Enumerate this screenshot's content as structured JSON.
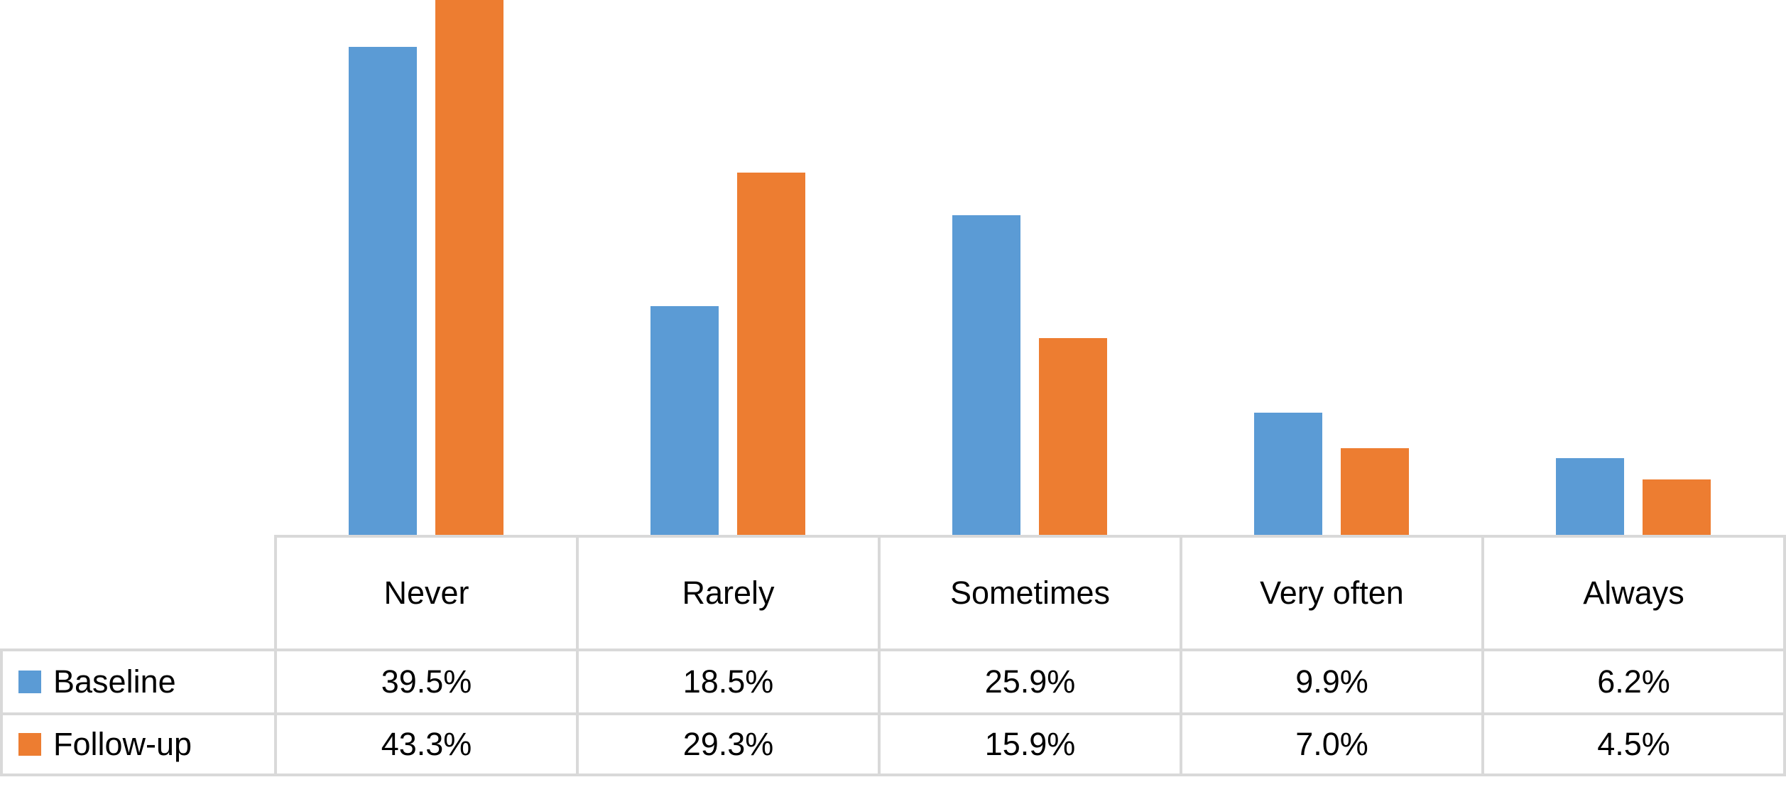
{
  "chart_data": {
    "type": "bar",
    "categories": [
      "Never",
      "Rarely",
      "Sometimes",
      "Very often",
      "Always"
    ],
    "series": [
      {
        "name": "Baseline",
        "color": "#5B9BD5",
        "values": [
          39.5,
          18.5,
          25.9,
          9.9,
          6.2
        ]
      },
      {
        "name": "Follow-up",
        "color": "#ED7D31",
        "values": [
          43.3,
          29.3,
          15.9,
          7.0,
          4.5
        ]
      }
    ],
    "value_unit": "percent",
    "ylim": [
      0,
      43.3
    ],
    "top_cropped": true,
    "grid": false,
    "legend_position": "table-rows-left",
    "title": "",
    "xlabel": "",
    "ylabel": ""
  },
  "table": {
    "rows": [
      {
        "label": "Baseline",
        "values": [
          "39.5%",
          "18.5%",
          "25.9%",
          "9.9%",
          "6.2%"
        ]
      },
      {
        "label": "Follow-up",
        "values": [
          "43.3%",
          "29.3%",
          "15.9%",
          "7.0%",
          "4.5%"
        ]
      }
    ]
  },
  "colors": {
    "baseline": "#5B9BD5",
    "followup": "#ED7D31",
    "table_border": "#D9D9D9",
    "text": "#000000",
    "background": "#FFFFFF"
  }
}
